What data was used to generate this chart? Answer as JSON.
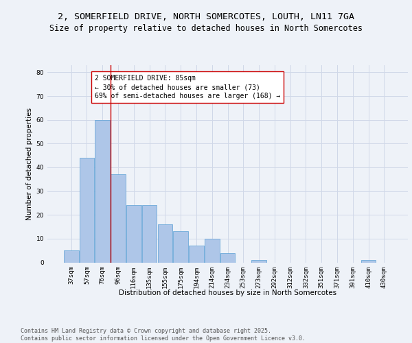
{
  "title1": "2, SOMERFIELD DRIVE, NORTH SOMERCOTES, LOUTH, LN11 7GA",
  "title2": "Size of property relative to detached houses in North Somercotes",
  "xlabel": "Distribution of detached houses by size in North Somercotes",
  "ylabel": "Number of detached properties",
  "categories": [
    "37sqm",
    "57sqm",
    "76sqm",
    "96sqm",
    "116sqm",
    "135sqm",
    "155sqm",
    "175sqm",
    "194sqm",
    "214sqm",
    "234sqm",
    "253sqm",
    "273sqm",
    "292sqm",
    "312sqm",
    "332sqm",
    "351sqm",
    "371sqm",
    "391sqm",
    "410sqm",
    "430sqm"
  ],
  "values": [
    5,
    44,
    60,
    37,
    24,
    24,
    16,
    13,
    7,
    10,
    4,
    0,
    1,
    0,
    0,
    0,
    0,
    0,
    0,
    1,
    0
  ],
  "bar_color": "#aec6e8",
  "bar_edge_color": "#5a9fd4",
  "vline_color": "#cc0000",
  "annotation_text": "2 SOMERFIELD DRIVE: 85sqm\n← 30% of detached houses are smaller (73)\n69% of semi-detached houses are larger (168) →",
  "annotation_box_color": "#ffffff",
  "annotation_box_edge": "#cc0000",
  "ylim": [
    0,
    83
  ],
  "yticks": [
    0,
    10,
    20,
    30,
    40,
    50,
    60,
    70,
    80
  ],
  "grid_color": "#d0d8e8",
  "background_color": "#eef2f8",
  "footer_text": "Contains HM Land Registry data © Crown copyright and database right 2025.\nContains public sector information licensed under the Open Government Licence v3.0.",
  "title_fontsize": 9.5,
  "subtitle_fontsize": 8.5,
  "axis_label_fontsize": 7.5,
  "tick_fontsize": 6.5,
  "annotation_fontsize": 7,
  "footer_fontsize": 6
}
